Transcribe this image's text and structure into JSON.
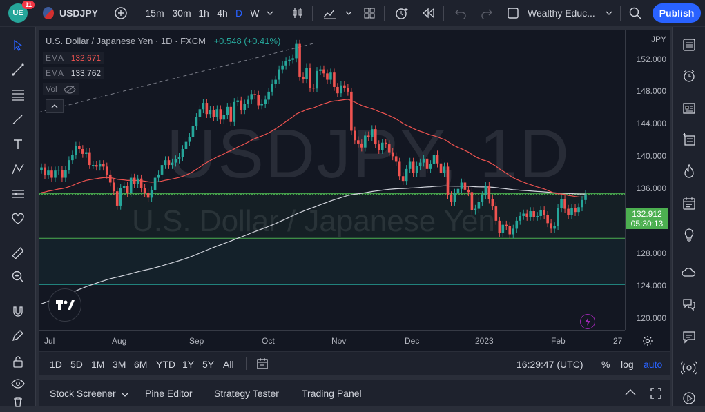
{
  "topbar": {
    "badge_count": "11",
    "symbol": "USDJPY",
    "intervals": [
      "15m",
      "30m",
      "1h",
      "4h",
      "D",
      "W"
    ],
    "active_interval": "D",
    "layout_name": "Wealthy Educ...",
    "publish_label": "Publish"
  },
  "legend": {
    "title": "U.S. Dollar / Japanese Yen · 1D · FXCM",
    "change": "+0.548 (+0.41%)",
    "ema1_label": "EMA",
    "ema1_value": "132.671",
    "ema2_label": "EMA",
    "ema2_value": "133.762",
    "vol_label": "Vol"
  },
  "watermark": {
    "symbol": "USDJPY, 1D",
    "name": "U.S. Dollar / Japanese Yen"
  },
  "price_axis": {
    "currency": "JPY",
    "labels": [
      "152.000",
      "148.000",
      "144.000",
      "140.000",
      "136.000",
      "128.000",
      "124.000",
      "120.000"
    ],
    "current_price": "132.912",
    "countdown": "05:30:13"
  },
  "time_axis": {
    "labels": [
      "Jul",
      "Aug",
      "Sep",
      "Oct",
      "Nov",
      "Dec",
      "2023",
      "Feb",
      "27"
    ]
  },
  "range_bar": {
    "ranges": [
      "1D",
      "5D",
      "1M",
      "3M",
      "6M",
      "YTD",
      "1Y",
      "5Y",
      "All"
    ],
    "clock": "16:29:47 (UTC)",
    "percent": "%",
    "log": "log",
    "auto": "auto"
  },
  "bottom_tabs": [
    "Stock Screener",
    "Pine Editor",
    "Strategy Tester",
    "Trading Panel"
  ],
  "colors": {
    "up": "#26a69a",
    "down": "#ef5350",
    "ema_fast": "#ef5350",
    "ema_slow": "#d1d4dc",
    "support_line": "#4caf50",
    "accent": "#2962ff"
  },
  "chart_data": {
    "type": "candlestick",
    "y_range": [
      118.5,
      153.5
    ],
    "x_range": [
      "Jul",
      "27"
    ],
    "ema_fast_last": 132.671,
    "ema_slow_last": 133.762,
    "horizontal_lines": [
      151.9,
      133.0,
      127.4,
      121.6
    ],
    "current_price": 132.912,
    "candles": [
      [
        136.0,
        136.3
      ],
      [
        136.3,
        135.3
      ],
      [
        135.3,
        135.9
      ],
      [
        135.9,
        135.0
      ],
      [
        135.0,
        135.9
      ],
      [
        135.9,
        136.0
      ],
      [
        136.0,
        135.0
      ],
      [
        135.0,
        136.0
      ],
      [
        136.0,
        137.2
      ],
      [
        137.2,
        137.9
      ],
      [
        137.9,
        139.0
      ],
      [
        139.0,
        138.6
      ],
      [
        138.6,
        138.0
      ],
      [
        138.0,
        138.2
      ],
      [
        138.2,
        136.6
      ],
      [
        136.6,
        136.6
      ],
      [
        136.6,
        136.4
      ],
      [
        136.4,
        136.7
      ],
      [
        136.7,
        136.4
      ],
      [
        136.4,
        135.4
      ],
      [
        135.4,
        134.4
      ],
      [
        134.4,
        133.3
      ],
      [
        133.3,
        131.5
      ],
      [
        131.5,
        133.7
      ],
      [
        133.7,
        134.0
      ],
      [
        134.0,
        133.1
      ],
      [
        133.1,
        135.0
      ],
      [
        135.0,
        134.2
      ],
      [
        134.2,
        134.9
      ],
      [
        134.9,
        133.7
      ],
      [
        133.7,
        133.1
      ],
      [
        133.1,
        132.5
      ],
      [
        132.5,
        133.4
      ],
      [
        133.4,
        135.0
      ],
      [
        135.0,
        135.4
      ],
      [
        135.4,
        136.6
      ],
      [
        136.6,
        137.2
      ],
      [
        137.2,
        136.6
      ],
      [
        136.6,
        136.9
      ],
      [
        136.9,
        137.3
      ],
      [
        137.3,
        137.6
      ],
      [
        137.6,
        138.6
      ],
      [
        138.6,
        139.5
      ],
      [
        139.5,
        140.1
      ],
      [
        140.1,
        141.5
      ],
      [
        141.5,
        142.6
      ],
      [
        142.6,
        143.6
      ],
      [
        143.6,
        144.4
      ],
      [
        144.4,
        143.0
      ],
      [
        143.0,
        143.5
      ],
      [
        143.5,
        142.6
      ],
      [
        142.6,
        143.6
      ],
      [
        143.6,
        142.3
      ],
      [
        142.3,
        142.9
      ],
      [
        142.9,
        143.9
      ],
      [
        143.9,
        142.0
      ],
      [
        142.0,
        144.5
      ],
      [
        144.5,
        144.7
      ],
      [
        144.7,
        143.5
      ],
      [
        143.5,
        144.3
      ],
      [
        144.3,
        144.8
      ],
      [
        144.8,
        145.5
      ],
      [
        145.5,
        145.4
      ],
      [
        145.4,
        144.1
      ],
      [
        144.1,
        144.3
      ],
      [
        144.3,
        144.8
      ],
      [
        144.8,
        145.8
      ],
      [
        145.8,
        146.8
      ],
      [
        146.8,
        147.3
      ],
      [
        147.3,
        148.6
      ],
      [
        148.6,
        149.1
      ],
      [
        149.1,
        149.6
      ],
      [
        149.6,
        149.8
      ],
      [
        149.8,
        150.0
      ],
      [
        150.0,
        151.8
      ],
      [
        151.8,
        147.7
      ],
      [
        147.7,
        147.4
      ],
      [
        147.4,
        148.8
      ],
      [
        148.8,
        146.3
      ],
      [
        146.3,
        146.2
      ],
      [
        146.2,
        148.4
      ],
      [
        148.4,
        148.6
      ],
      [
        148.6,
        148.1
      ],
      [
        148.1,
        147.3
      ],
      [
        147.3,
        148.2
      ],
      [
        148.2,
        146.4
      ],
      [
        146.4,
        145.6
      ],
      [
        145.6,
        146.6
      ],
      [
        146.6,
        146.3
      ],
      [
        146.3,
        145.8
      ],
      [
        145.8,
        140.9
      ],
      [
        140.9,
        139.7
      ],
      [
        139.7,
        139.3
      ],
      [
        139.3,
        138.8
      ],
      [
        138.8,
        140.3
      ],
      [
        140.3,
        140.1
      ],
      [
        140.1,
        141.1
      ],
      [
        141.1,
        139.2
      ],
      [
        139.2,
        138.5
      ],
      [
        138.5,
        139.4
      ],
      [
        139.4,
        139.2
      ],
      [
        139.2,
        138.2
      ],
      [
        138.2,
        137.7
      ],
      [
        137.7,
        137.0
      ],
      [
        137.0,
        135.2
      ],
      [
        135.2,
        134.6
      ],
      [
        134.6,
        136.1
      ],
      [
        136.1,
        137.0
      ],
      [
        137.0,
        135.6
      ],
      [
        135.6,
        136.5
      ],
      [
        136.5,
        136.9
      ],
      [
        136.9,
        137.4
      ],
      [
        137.4,
        136.1
      ],
      [
        136.1,
        136.7
      ],
      [
        136.7,
        137.9
      ],
      [
        137.9,
        136.8
      ],
      [
        136.8,
        135.6
      ],
      [
        135.6,
        136.4
      ],
      [
        136.4,
        132.8
      ],
      [
        132.8,
        132.0
      ],
      [
        132.0,
        133.1
      ],
      [
        133.1,
        133.6
      ],
      [
        133.6,
        134.4
      ],
      [
        134.4,
        133.5
      ],
      [
        133.5,
        133.2
      ],
      [
        133.2,
        130.9
      ],
      [
        130.9,
        131.1
      ],
      [
        131.1,
        132.0
      ],
      [
        132.0,
        132.8
      ],
      [
        132.8,
        134.0
      ],
      [
        134.0,
        132.3
      ],
      [
        132.3,
        131.4
      ],
      [
        131.4,
        129.6
      ],
      [
        129.6,
        128.1
      ],
      [
        128.1,
        129.1
      ],
      [
        129.1,
        128.9
      ],
      [
        128.9,
        127.9
      ],
      [
        127.9,
        128.6
      ],
      [
        128.6,
        129.6
      ],
      [
        129.6,
        130.2
      ],
      [
        130.2,
        130.5
      ],
      [
        130.5,
        130.1
      ],
      [
        130.1,
        130.8
      ],
      [
        130.8,
        130.1
      ],
      [
        130.1,
        130.2
      ],
      [
        130.2,
        130.9
      ],
      [
        130.9,
        130.3
      ],
      [
        130.3,
        129.3
      ],
      [
        129.3,
        128.6
      ],
      [
        128.6,
        128.9
      ],
      [
        128.9,
        131.2
      ],
      [
        131.2,
        132.3
      ],
      [
        132.3,
        131.1
      ],
      [
        131.1,
        130.3
      ],
      [
        130.3,
        131.2
      ],
      [
        131.2,
        130.7
      ],
      [
        130.7,
        131.3
      ],
      [
        131.3,
        132.2
      ],
      [
        132.2,
        132.9
      ]
    ]
  }
}
